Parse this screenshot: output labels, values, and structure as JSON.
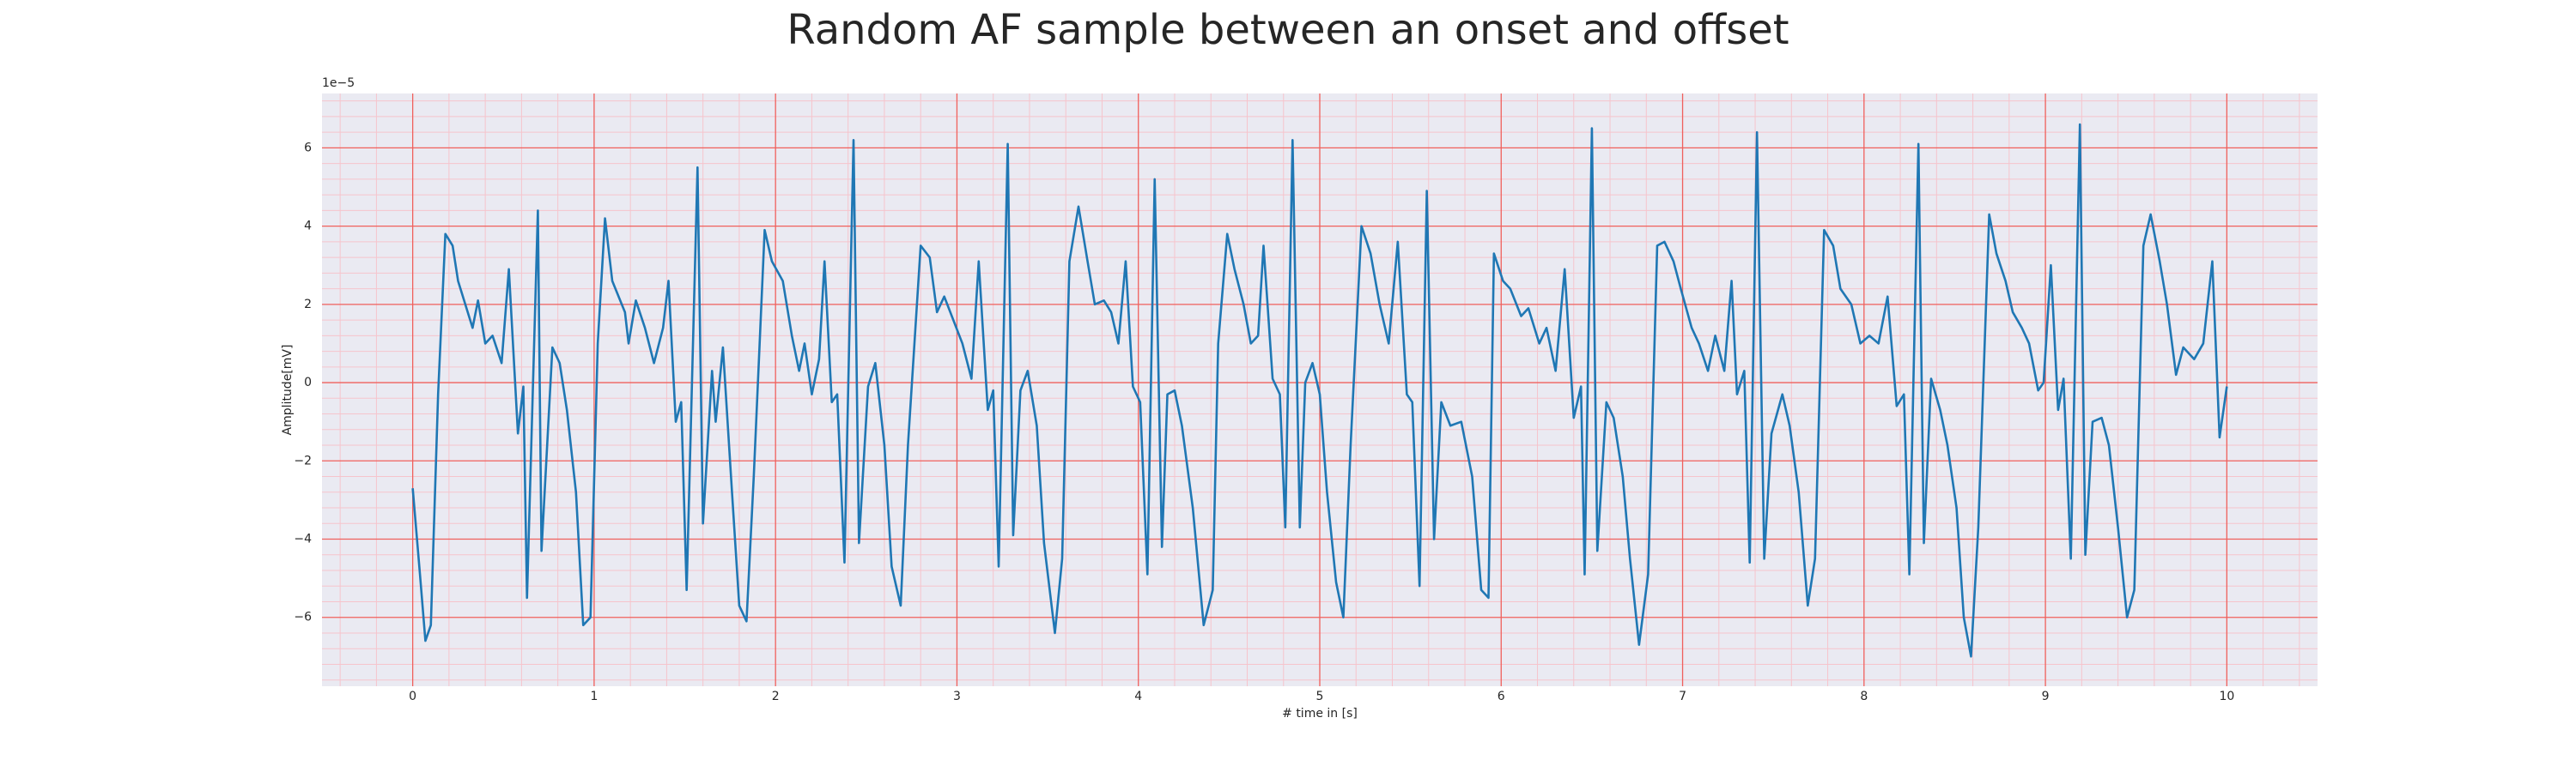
{
  "chart_data": {
    "type": "line",
    "title": "Random AF sample between an onset and offset",
    "xlabel": "# time in [s]",
    "ylabel": "Amplitude[mV]",
    "y_offset_text": "1e−5",
    "x": [
      0,
      0.04,
      0.07,
      0.1,
      0.14,
      0.18,
      0.22,
      0.25,
      0.29,
      0.33,
      0.36,
      0.4,
      0.44,
      0.49,
      0.53,
      0.58,
      0.61,
      0.63,
      0.69,
      0.71,
      0.77,
      0.81,
      0.85,
      0.9,
      0.94,
      0.98,
      1.02,
      1.06,
      1.1,
      1.17,
      1.19,
      1.23,
      1.28,
      1.33,
      1.38,
      1.41,
      1.45,
      1.48,
      1.51,
      1.57,
      1.6,
      1.65,
      1.67,
      1.71,
      1.76,
      1.8,
      1.84,
      1.88,
      1.94,
      1.98,
      2.04,
      2.09,
      2.13,
      2.16,
      2.2,
      2.24,
      2.27,
      2.31,
      2.34,
      2.38,
      2.43,
      2.46,
      2.51,
      2.55,
      2.6,
      2.64,
      2.69,
      2.73,
      2.8,
      2.85,
      2.89,
      2.93,
      2.98,
      3.03,
      3.08,
      3.12,
      3.17,
      3.2,
      3.23,
      3.28,
      3.31,
      3.35,
      3.39,
      3.44,
      3.48,
      3.54,
      3.58,
      3.62,
      3.67,
      3.72,
      3.76,
      3.81,
      3.85,
      3.89,
      3.93,
      3.97,
      4.01,
      4.05,
      4.09,
      4.13,
      4.16,
      4.2,
      4.24,
      4.3,
      4.36,
      4.41,
      4.44,
      4.49,
      4.53,
      4.58,
      4.62,
      4.66,
      4.69,
      4.74,
      4.78,
      4.81,
      4.85,
      4.89,
      4.92,
      4.96,
      5,
      5.04,
      5.09,
      5.13,
      5.17,
      5.23,
      5.28,
      5.33,
      5.38,
      5.43,
      5.48,
      5.51,
      5.55,
      5.59,
      5.63,
      5.67,
      5.72,
      5.78,
      5.84,
      5.89,
      5.93,
      5.96,
      6.01,
      6.05,
      6.11,
      6.15,
      6.21,
      6.25,
      6.3,
      6.35,
      6.4,
      6.44,
      6.46,
      6.5,
      6.53,
      6.58,
      6.62,
      6.67,
      6.71,
      6.76,
      6.81,
      6.86,
      6.9,
      6.95,
      6.99,
      7.05,
      7.09,
      7.14,
      7.18,
      7.23,
      7.27,
      7.3,
      7.34,
      7.37,
      7.41,
      7.45,
      7.49,
      7.55,
      7.59,
      7.64,
      7.69,
      7.73,
      7.78,
      7.83,
      7.87,
      7.93,
      7.98,
      8.03,
      8.08,
      8.13,
      8.18,
      8.22,
      8.25,
      8.3,
      8.33,
      8.37,
      8.42,
      8.46,
      8.51,
      8.55,
      8.59,
      8.63,
      8.69,
      8.73,
      8.78,
      8.82,
      8.87,
      8.91,
      8.96,
      8.99,
      9.03,
      9.07,
      9.1,
      9.14,
      9.19,
      9.22,
      9.26,
      9.31,
      9.35,
      9.4,
      9.45,
      9.49,
      9.54,
      9.58,
      9.63,
      9.67,
      9.72,
      9.76,
      9.82,
      9.87,
      9.92,
      9.96,
      10
    ],
    "values": [
      -2.7,
      -4.9,
      -6.6,
      -6.2,
      -0.3,
      3.8,
      3.5,
      2.6,
      2.0,
      1.4,
      2.1,
      1.0,
      1.2,
      0.5,
      2.9,
      -1.3,
      -0.1,
      -5.5,
      4.4,
      -4.3,
      0.9,
      0.5,
      -0.7,
      -2.8,
      -6.2,
      -6.0,
      1.0,
      4.2,
      2.6,
      1.8,
      1.0,
      2.1,
      1.4,
      0.5,
      1.4,
      2.6,
      -1.0,
      -0.5,
      -5.3,
      5.5,
      -3.6,
      0.3,
      -1.0,
      0.9,
      -2.8,
      -5.7,
      -6.1,
      -2.4,
      3.9,
      3.1,
      2.6,
      1.2,
      0.3,
      1.0,
      -0.3,
      0.6,
      3.1,
      -0.5,
      -0.3,
      -4.6,
      6.2,
      -4.1,
      -0.1,
      0.5,
      -1.6,
      -4.7,
      -5.7,
      -1.6,
      3.5,
      3.2,
      1.8,
      2.2,
      1.6,
      1.0,
      0.1,
      3.1,
      -0.7,
      -0.2,
      -4.7,
      6.1,
      -3.9,
      -0.2,
      0.3,
      -1.1,
      -4.1,
      -6.4,
      -4.5,
      3.1,
      4.5,
      3.1,
      2.0,
      2.1,
      1.8,
      1.0,
      3.1,
      -0.1,
      -0.5,
      -4.9,
      5.2,
      -4.2,
      -0.3,
      -0.2,
      -1.1,
      -3.2,
      -6.2,
      -5.3,
      1.0,
      3.8,
      2.9,
      2.0,
      1.0,
      1.2,
      3.5,
      0.1,
      -0.3,
      -3.7,
      6.2,
      -3.7,
      0.0,
      0.5,
      -0.3,
      -2.8,
      -5.1,
      -6.0,
      -1.6,
      4.0,
      3.3,
      2.0,
      1.0,
      3.6,
      -0.3,
      -0.5,
      -5.2,
      4.9,
      -4.0,
      -0.5,
      -1.1,
      -1.0,
      -2.4,
      -5.3,
      -5.5,
      3.3,
      2.6,
      2.4,
      1.7,
      1.9,
      1.0,
      1.4,
      0.3,
      2.9,
      -0.9,
      -0.1,
      -4.9,
      6.5,
      -4.3,
      -0.5,
      -0.9,
      -2.4,
      -4.5,
      -6.7,
      -4.9,
      3.5,
      3.6,
      3.1,
      2.4,
      1.4,
      1.0,
      0.3,
      1.2,
      0.3,
      2.6,
      -0.3,
      0.3,
      -4.6,
      6.4,
      -4.5,
      -1.3,
      -0.3,
      -1.1,
      -2.8,
      -5.7,
      -4.5,
      3.9,
      3.5,
      2.4,
      2.0,
      1.0,
      1.2,
      1.0,
      2.2,
      -0.6,
      -0.3,
      -4.9,
      6.1,
      -4.1,
      0.1,
      -0.7,
      -1.6,
      -3.2,
      -6.0,
      -7.0,
      -3.7,
      4.3,
      3.3,
      2.6,
      1.8,
      1.4,
      1.0,
      -0.2,
      0.0,
      3.0,
      -0.7,
      0.1,
      -4.5,
      6.6,
      -4.4,
      -1.0,
      -0.9,
      -1.6,
      -3.7,
      -6.0,
      -5.3,
      3.5,
      4.3,
      3.1,
      2.0,
      0.2,
      0.9,
      0.6,
      1.0,
      3.1,
      -1.4,
      -0.1
    ],
    "color": "#1f77b4",
    "xlim": [
      -0.5,
      10.5
    ],
    "ylim": [
      -7.76,
      7.39
    ],
    "xticks": [
      0,
      1,
      2,
      3,
      4,
      5,
      6,
      7,
      8,
      9,
      10
    ],
    "yticks": [
      {
        "value": -6,
        "label": "−6"
      },
      {
        "value": -4,
        "label": "−4"
      },
      {
        "value": -2,
        "label": "−2"
      },
      0,
      2,
      4,
      6
    ],
    "xminorticks": [
      -0.4,
      -0.2,
      0.2,
      0.4,
      0.6,
      0.8,
      1.2,
      1.4,
      1.6,
      1.8,
      2.2,
      2.4,
      2.6,
      2.8,
      3.2,
      3.4,
      3.6,
      3.8,
      4.2,
      4.4,
      4.6,
      4.8,
      5.2,
      5.4,
      5.6,
      5.8,
      6.2,
      6.4,
      6.6,
      6.8,
      7.2,
      7.4,
      7.6,
      7.8,
      8.2,
      8.4,
      8.6,
      8.8,
      9.2,
      9.4,
      9.6,
      9.8,
      10.2,
      10.4
    ],
    "yminorticks": [
      -7.6,
      -7.2,
      -6.8,
      -6.4,
      -5.6,
      -5.2,
      -4.8,
      -4.4,
      -3.6,
      -3.2,
      -2.8,
      -2.4,
      -1.6,
      -1.2,
      -0.8,
      -0.4,
      0.4,
      0.8,
      1.2,
      1.6,
      2.4,
      2.8,
      3.2,
      3.6,
      4.4,
      4.8,
      5.2,
      5.6,
      6.4,
      6.8,
      7.2
    ],
    "grid": true,
    "grid_color": "#f0605c",
    "minor_grid_color": "#f6c4cc",
    "background": "#eaeaf2"
  }
}
